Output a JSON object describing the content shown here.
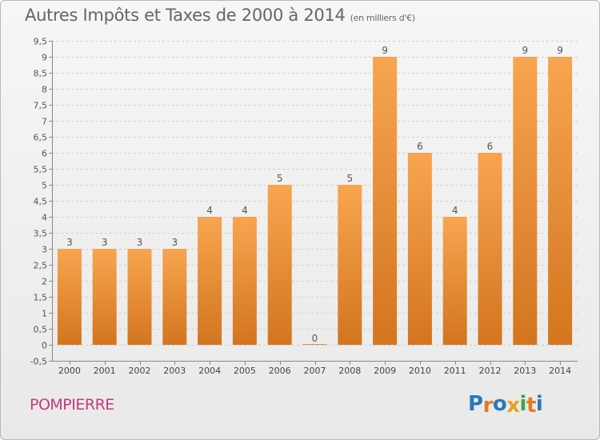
{
  "header": {
    "title": "Autres Impôts et Taxes de 2000 à 2014",
    "unit_note": "(en milliers d'€)"
  },
  "footer": {
    "commune": "POMPIERRE",
    "logo_text": "Proxiti"
  },
  "colors": {
    "bar_light": "#f8a550",
    "bar_dark": "#d3751f",
    "title_text": "#666666",
    "commune_text": "#c63b7a",
    "logo_letters": [
      "#2a79b8",
      "#e87a1e",
      "#2a79b8",
      "#e8a11e",
      "#3aa64c",
      "#e87a1e",
      "#2a79b8"
    ]
  },
  "chart_data": {
    "type": "bar",
    "title": "Autres Impôts et Taxes de 2000 à 2014",
    "categories": [
      "2000",
      "2001",
      "2002",
      "2003",
      "2004",
      "2005",
      "2006",
      "2007",
      "2008",
      "2009",
      "2010",
      "2011",
      "2012",
      "2013",
      "2014"
    ],
    "values": [
      3,
      3,
      3,
      3,
      4,
      4,
      5,
      0,
      5,
      9,
      6,
      4,
      6,
      9,
      9
    ],
    "data_labels": [
      "3",
      "3",
      "3",
      "3",
      "4",
      "4",
      "5",
      "0",
      "5",
      "9",
      "6",
      "4",
      "6",
      "9",
      "9"
    ],
    "ylim": [
      -0.5,
      9.5
    ],
    "yticks": [
      "-0,5",
      "0",
      "0,5",
      "1",
      "1,5",
      "2",
      "2,5",
      "3",
      "3,5",
      "4",
      "4,5",
      "5",
      "5,5",
      "6",
      "6,5",
      "7",
      "7,5",
      "8",
      "8,5",
      "9",
      "9,5"
    ],
    "ytick_values": [
      -0.5,
      0,
      0.5,
      1,
      1.5,
      2,
      2.5,
      3,
      3.5,
      4,
      4.5,
      5,
      5.5,
      6,
      6.5,
      7,
      7.5,
      8,
      8.5,
      9,
      9.5
    ],
    "grid": true
  }
}
